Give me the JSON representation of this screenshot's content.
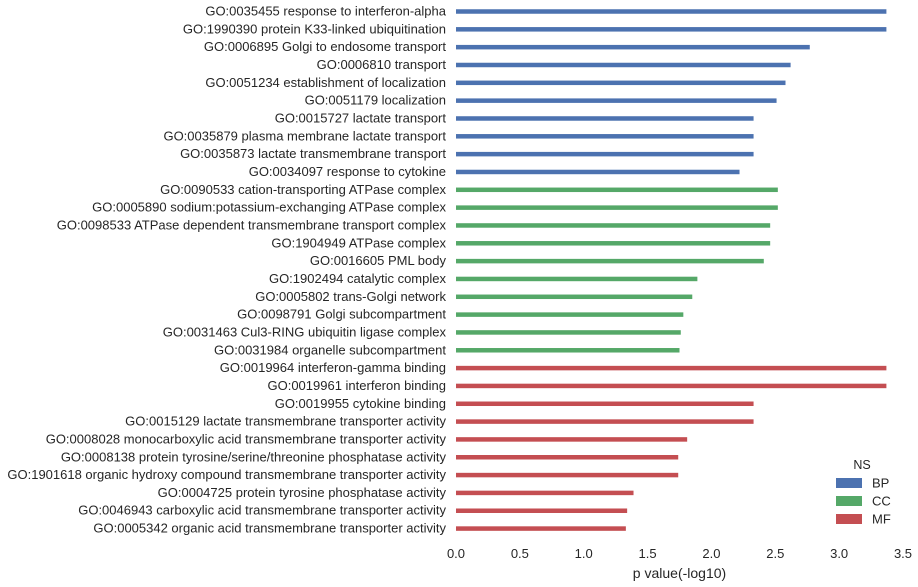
{
  "chart_data": {
    "type": "bar",
    "orientation": "horizontal",
    "xlabel": "p value(-log10)",
    "ylabel": "",
    "xlim": [
      0,
      3.5
    ],
    "xticks": [
      "0.0",
      "0.5",
      "1.0",
      "1.5",
      "2.0",
      "2.5",
      "3.0",
      "3.5"
    ],
    "grid": false,
    "legend": {
      "title": "NS",
      "placement": "lower-right"
    },
    "series": [
      {
        "name": "BP",
        "color": "#4c72b0"
      },
      {
        "name": "CC",
        "color": "#55a868"
      },
      {
        "name": "MF",
        "color": "#c44e52"
      }
    ],
    "categories": [
      {
        "label": "GO:0035455 response to interferon-alpha",
        "value": 3.37,
        "ns": "BP"
      },
      {
        "label": "GO:1990390 protein K33-linked ubiquitination",
        "value": 3.37,
        "ns": "BP"
      },
      {
        "label": "GO:0006895 Golgi to endosome transport",
        "value": 2.77,
        "ns": "BP"
      },
      {
        "label": "GO:0006810 transport",
        "value": 2.62,
        "ns": "BP"
      },
      {
        "label": "GO:0051234 establishment of localization",
        "value": 2.58,
        "ns": "BP"
      },
      {
        "label": "GO:0051179 localization",
        "value": 2.51,
        "ns": "BP"
      },
      {
        "label": "GO:0015727 lactate transport",
        "value": 2.33,
        "ns": "BP"
      },
      {
        "label": "GO:0035879 plasma membrane lactate transport",
        "value": 2.33,
        "ns": "BP"
      },
      {
        "label": "GO:0035873 lactate transmembrane transport",
        "value": 2.33,
        "ns": "BP"
      },
      {
        "label": "GO:0034097 response to cytokine",
        "value": 2.22,
        "ns": "BP"
      },
      {
        "label": "GO:0090533 cation-transporting ATPase complex",
        "value": 2.52,
        "ns": "CC"
      },
      {
        "label": "GO:0005890 sodium:potassium-exchanging ATPase complex",
        "value": 2.52,
        "ns": "CC"
      },
      {
        "label": "GO:0098533 ATPase dependent transmembrane transport complex",
        "value": 2.46,
        "ns": "CC"
      },
      {
        "label": "GO:1904949 ATPase complex",
        "value": 2.46,
        "ns": "CC"
      },
      {
        "label": "GO:0016605 PML body",
        "value": 2.41,
        "ns": "CC"
      },
      {
        "label": "GO:1902494 catalytic complex",
        "value": 1.89,
        "ns": "CC"
      },
      {
        "label": "GO:0005802 trans-Golgi network",
        "value": 1.85,
        "ns": "CC"
      },
      {
        "label": "GO:0098791 Golgi subcompartment",
        "value": 1.78,
        "ns": "CC"
      },
      {
        "label": "GO:0031463 Cul3-RING ubiquitin ligase complex",
        "value": 1.76,
        "ns": "CC"
      },
      {
        "label": "GO:0031984 organelle subcompartment",
        "value": 1.75,
        "ns": "CC"
      },
      {
        "label": "GO:0019964 interferon-gamma binding",
        "value": 3.37,
        "ns": "MF"
      },
      {
        "label": "GO:0019961 interferon binding",
        "value": 3.37,
        "ns": "MF"
      },
      {
        "label": "GO:0019955 cytokine binding",
        "value": 2.33,
        "ns": "MF"
      },
      {
        "label": "GO:0015129 lactate transmembrane transporter activity",
        "value": 2.33,
        "ns": "MF"
      },
      {
        "label": "GO:0008028 monocarboxylic acid transmembrane transporter activity",
        "value": 1.81,
        "ns": "MF"
      },
      {
        "label": "GO:0008138 protein tyrosine/serine/threonine phosphatase activity",
        "value": 1.74,
        "ns": "MF"
      },
      {
        "label": "GO:1901618 organic hydroxy compound transmembrane transporter activity",
        "value": 1.74,
        "ns": "MF"
      },
      {
        "label": "GO:0004725 protein tyrosine phosphatase activity",
        "value": 1.39,
        "ns": "MF"
      },
      {
        "label": "GO:0046943 carboxylic acid transmembrane transporter activity",
        "value": 1.34,
        "ns": "MF"
      },
      {
        "label": "GO:0005342 organic acid transmembrane transporter activity",
        "value": 1.33,
        "ns": "MF"
      }
    ]
  }
}
